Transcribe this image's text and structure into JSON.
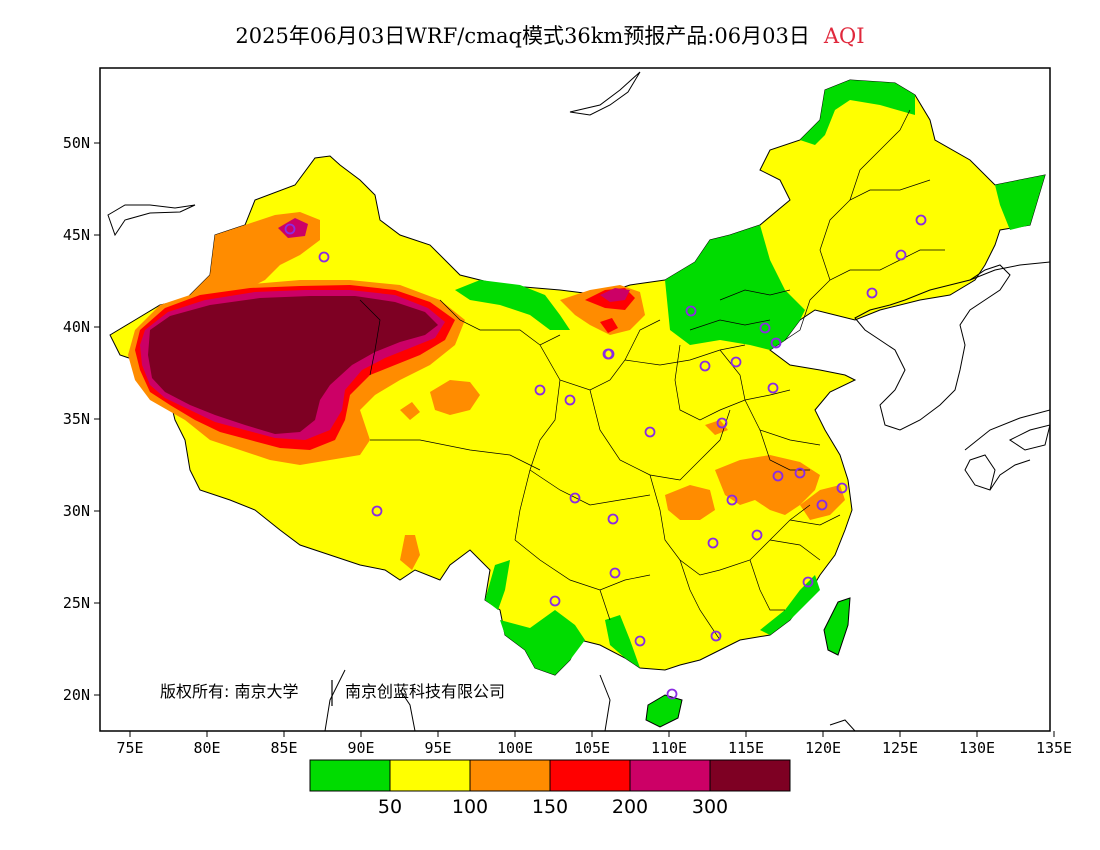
{
  "title": {
    "main": "2025年06月03日WRF/cmaq模式36km预报产品:06月03日",
    "variable": "AQI",
    "variable_color": "#e0283c"
  },
  "axes": {
    "x_ticks": [
      "75E",
      "80E",
      "85E",
      "90E",
      "95E",
      "100E",
      "105E",
      "110E",
      "115E",
      "120E",
      "125E",
      "130E",
      "135E"
    ],
    "y_ticks": [
      "50N",
      "45N",
      "40N",
      "35N",
      "30N",
      "25N",
      "20N"
    ]
  },
  "colorbar": {
    "colors": [
      "#00dc00",
      "#ffff00",
      "#ff8c00",
      "#ff0000",
      "#cc0066",
      "#7e0023"
    ],
    "labels": [
      "50",
      "100",
      "150",
      "200",
      "300"
    ]
  },
  "copyright": {
    "left": "版权所有: 南京大学",
    "right": "南京创蓝科技有限公司"
  },
  "colors": {
    "good": "#00dc00",
    "moderate": "#ffff00",
    "sensitive": "#ff8c00",
    "unhealthy": "#ff0000",
    "very_unhealthy": "#cc0066",
    "hazardous": "#7e0023",
    "station_marker": "#8a2be2"
  }
}
